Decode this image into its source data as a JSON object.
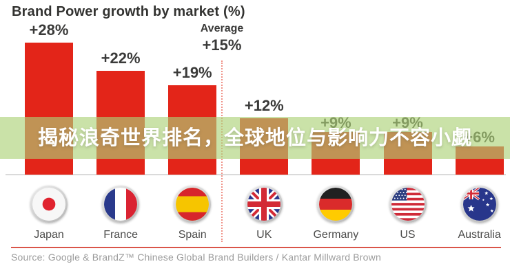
{
  "title": "Brand Power growth by market (%)",
  "average": {
    "label": "Average",
    "value": "+15%"
  },
  "banner": {
    "text": "揭秘浪奇世界排名，全球地位与影响力不容小觑"
  },
  "source": "Source: Google & BrandZ™ Chinese Global Brand Builders / Kantar Millward Brown",
  "colors": {
    "bar": "#e32519",
    "overlay_green": "rgba(172,210,119,0.64)",
    "value_label": "#3a3a39",
    "baseline": "#dadada",
    "dotted_divider": "#f09186",
    "bottom_rule": "#da5549",
    "source_text": "#9b9b9b",
    "banner_text": "#ffffff"
  },
  "chart_data": {
    "type": "bar",
    "title": "Brand Power growth by market (%)",
    "categories": [
      "Japan",
      "France",
      "Spain",
      "UK",
      "Germany",
      "US",
      "Australia"
    ],
    "values": [
      28,
      22,
      19,
      12,
      9,
      9,
      6
    ],
    "value_labels": [
      "+28%",
      "+22%",
      "+19%",
      "+12%",
      "+9%",
      "+9%",
      "+6%"
    ],
    "flag_icons": [
      "flag-japan-icon",
      "flag-france-icon",
      "flag-spain-icon",
      "flag-uk-icon",
      "flag-germany-icon",
      "flag-us-icon",
      "flag-australia-icon"
    ],
    "average": 15,
    "average_label": "Average +15%",
    "ylabel": "Brand Power growth (%)",
    "ylim": [
      0,
      30
    ],
    "grid": false,
    "legend": false,
    "layout_note": "Dotted red divider after Spain separates above-average markets from below-average ones; semi-transparent green headline banner overlays the lower half of the bars"
  }
}
